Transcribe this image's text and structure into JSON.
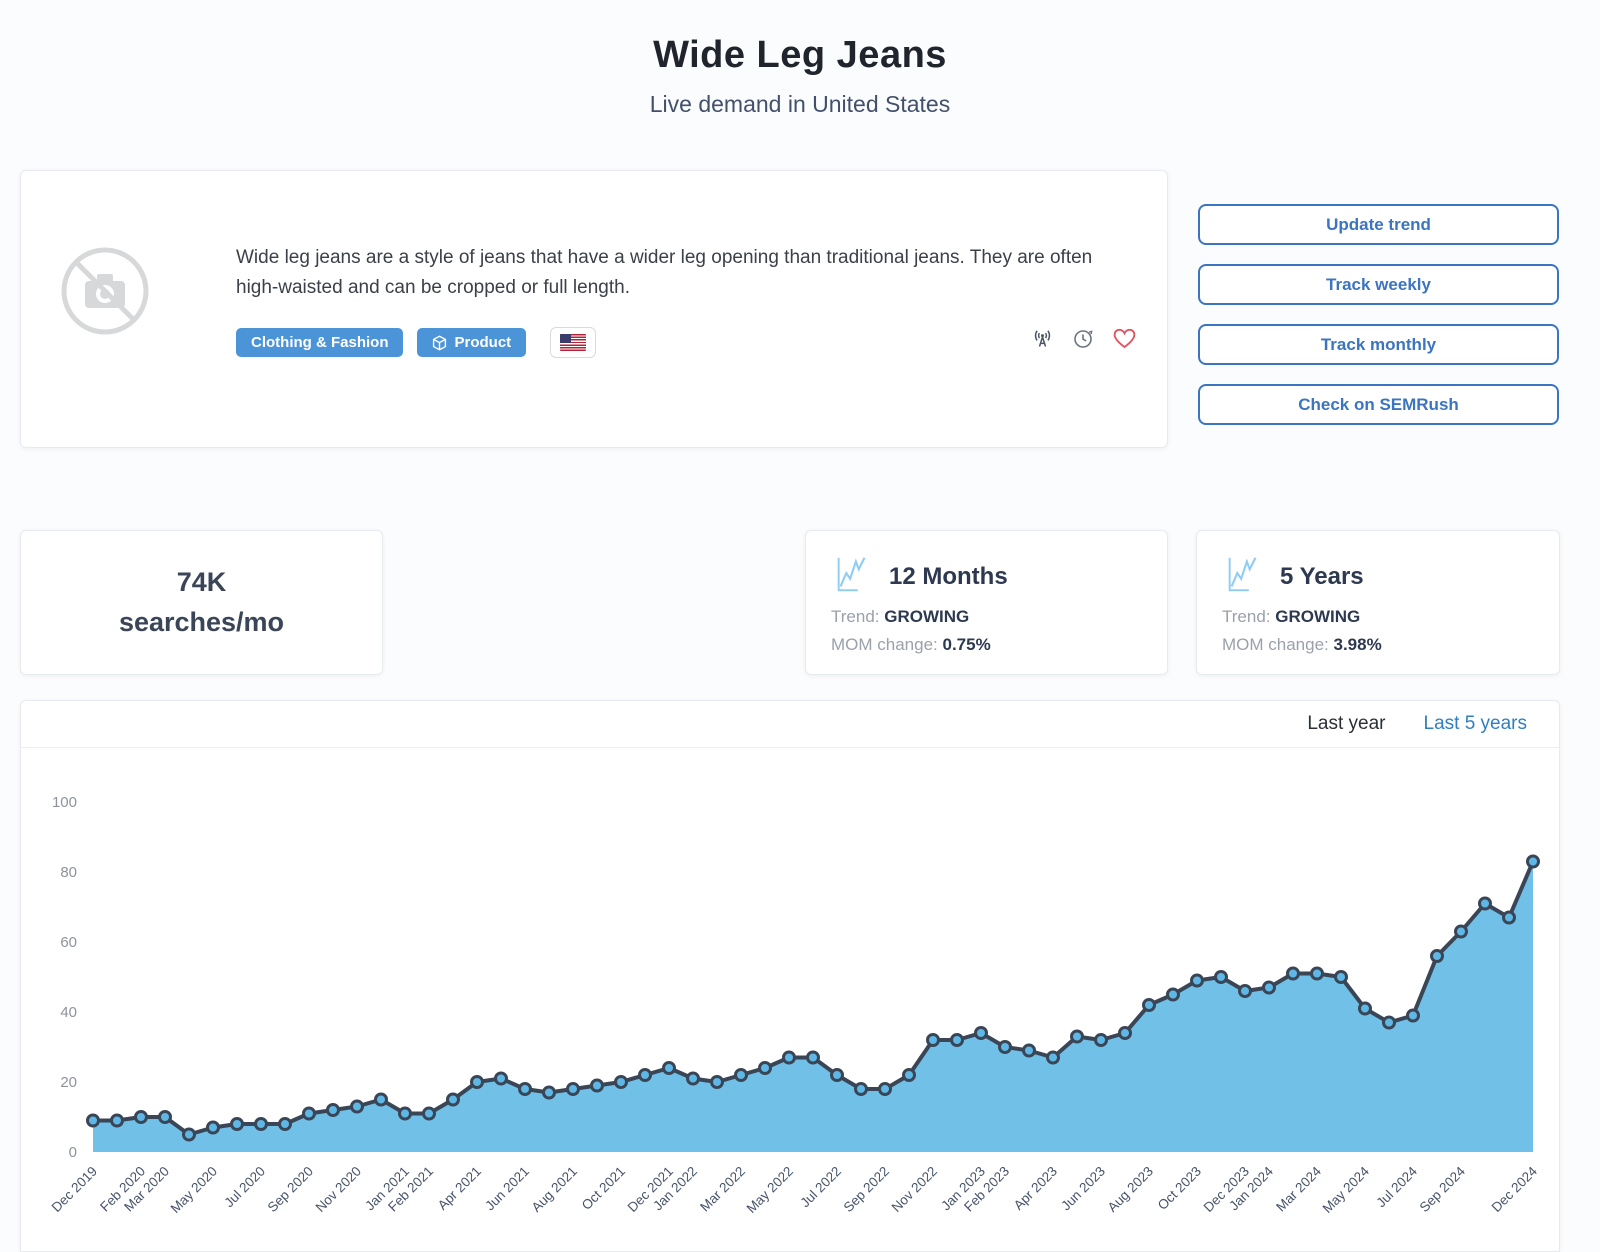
{
  "header": {
    "title": "Wide Leg Jeans",
    "subtitle": "Live demand in United States"
  },
  "info_card": {
    "description": "Wide leg jeans are a style of jeans that have a wider leg opening than traditional jeans. They are often high-waisted and can be cropped or full length.",
    "tags": [
      {
        "label": "Clothing & Fashion"
      },
      {
        "label": "Product",
        "icon": "cube-icon"
      }
    ],
    "country_flag": "United States",
    "action_icons": [
      "broadcast-icon",
      "history-icon",
      "favorite-heart-icon"
    ]
  },
  "actions": {
    "buttons": [
      "Update trend",
      "Track weekly",
      "Track monthly",
      "Check on SEMRush"
    ]
  },
  "stats": {
    "volume": {
      "value": "74K",
      "unit": "searches/mo"
    },
    "twelve_months": {
      "title": "12 Months",
      "trend_label": "Trend:",
      "trend_value": "GROWING",
      "mom_label": "MOM change:",
      "mom_value": "0.75%"
    },
    "five_years": {
      "title": "5 Years",
      "trend_label": "Trend:",
      "trend_value": "GROWING",
      "mom_label": "MOM change:",
      "mom_value": "3.98%"
    }
  },
  "chart_tabs": {
    "last_year": "Last year",
    "last_5_years": "Last 5 years",
    "active": "Last 5 years"
  },
  "chart_data": {
    "type": "area",
    "title": "Search demand (indexed 0-100), last 5 years",
    "xlabel": "",
    "ylabel": "",
    "ylim": [
      0,
      100
    ],
    "y_ticks": [
      0,
      20,
      40,
      60,
      80,
      100
    ],
    "grid": false,
    "legend_position": "none",
    "x": [
      "Dec 2019",
      "Jan 2020",
      "Feb 2020",
      "Mar 2020",
      "Apr 2020",
      "May 2020",
      "Jun 2020",
      "Jul 2020",
      "Aug 2020",
      "Sep 2020",
      "Oct 2020",
      "Nov 2020",
      "Dec 2020",
      "Jan 2021",
      "Feb 2021",
      "Mar 2021",
      "Apr 2021",
      "May 2021",
      "Jun 2021",
      "Jul 2021",
      "Aug 2021",
      "Sep 2021",
      "Oct 2021",
      "Nov 2021",
      "Dec 2021",
      "Jan 2022",
      "Feb 2022",
      "Mar 2022",
      "Apr 2022",
      "May 2022",
      "Jun 2022",
      "Jul 2022",
      "Aug 2022",
      "Sep 2022",
      "Oct 2022",
      "Nov 2022",
      "Dec 2022",
      "Jan 2023",
      "Feb 2023",
      "Mar 2023",
      "Apr 2023",
      "May 2023",
      "Jun 2023",
      "Jul 2023",
      "Aug 2023",
      "Sep 2023",
      "Oct 2023",
      "Nov 2023",
      "Dec 2023",
      "Jan 2024",
      "Feb 2024",
      "Mar 2024",
      "Apr 2024",
      "May 2024",
      "Jun 2024",
      "Jul 2024",
      "Aug 2024",
      "Sep 2024",
      "Oct 2024",
      "Nov 2024",
      "Dec 2024"
    ],
    "values": [
      9,
      9,
      10,
      10,
      5,
      7,
      8,
      8,
      8,
      11,
      12,
      13,
      15,
      11,
      11,
      15,
      20,
      21,
      18,
      17,
      18,
      19,
      20,
      22,
      24,
      21,
      20,
      22,
      24,
      27,
      27,
      22,
      18,
      18,
      22,
      32,
      32,
      34,
      30,
      29,
      27,
      33,
      32,
      34,
      42,
      45,
      49,
      50,
      46,
      47,
      51,
      51,
      50,
      41,
      37,
      39,
      56,
      63,
      71,
      67,
      83
    ],
    "shown_x_ticks": [
      "Dec 2019",
      "Feb 2020",
      "Mar 2020",
      "May 2020",
      "Jul 2020",
      "Sep 2020",
      "Nov 2020",
      "Jan 2021",
      "Feb 2021",
      "Apr 2021",
      "Jun 2021",
      "Aug 2021",
      "Oct 2021",
      "Dec 2021",
      "Jan 2022",
      "Mar 2022",
      "May 2022",
      "Jul 2022",
      "Sep 2022",
      "Nov 2022",
      "Jan 2023",
      "Feb 2023",
      "Apr 2023",
      "Jun 2023",
      "Aug 2023",
      "Oct 2023",
      "Dec 2023",
      "Jan 2024",
      "Mar 2024",
      "May 2024",
      "Jul 2024",
      "Sep 2024",
      "Dec 2024"
    ],
    "colors": {
      "area_fill": "#70c0e7",
      "line": "#3a4656",
      "point_fill": "#5fb7e6",
      "point_stroke": "#3a4656",
      "y_tick_text": "#8d939c",
      "x_tick_text": "#47536a"
    }
  },
  "colors": {
    "accent_blue": "#3b74c0",
    "tag_blue": "#4b94d8",
    "active_tab_blue": "#2f7fc1",
    "heart_red": "#e25360",
    "title_dark": "#20242c"
  }
}
